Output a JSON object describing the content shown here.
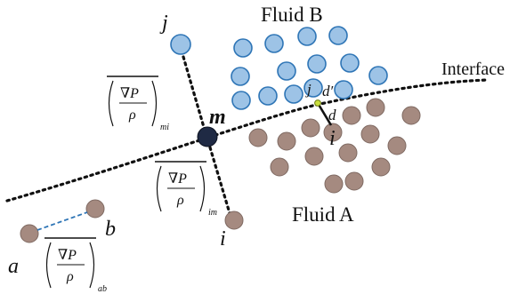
{
  "labels": {
    "fluid_b": "Fluid B",
    "fluid_a": "Fluid A",
    "interface": "Interface",
    "j_top": "j",
    "m": "m",
    "i_bottom": "i",
    "a": "a",
    "b": "b",
    "j_near": "j",
    "i_near": "i",
    "d_prime": "d′",
    "d": "d"
  },
  "terms": {
    "mi": {
      "numerator": "∇P",
      "denominator": "ρ",
      "subscript": "mi"
    },
    "im": {
      "numerator": "∇P",
      "denominator": "ρ",
      "subscript": "im"
    },
    "ab": {
      "numerator": "∇P",
      "denominator": "ρ",
      "subscript": "ab"
    }
  },
  "colors": {
    "fluid_b_fill": "#9dc3e6",
    "fluid_b_stroke": "#2e75b6",
    "fluid_a_fill": "#a58a80",
    "fluid_a_stroke": "#7f6a62",
    "m_fill": "#1f2a44",
    "dashed_link": "#2e75b6",
    "interface_point": "#c9de3c"
  }
}
